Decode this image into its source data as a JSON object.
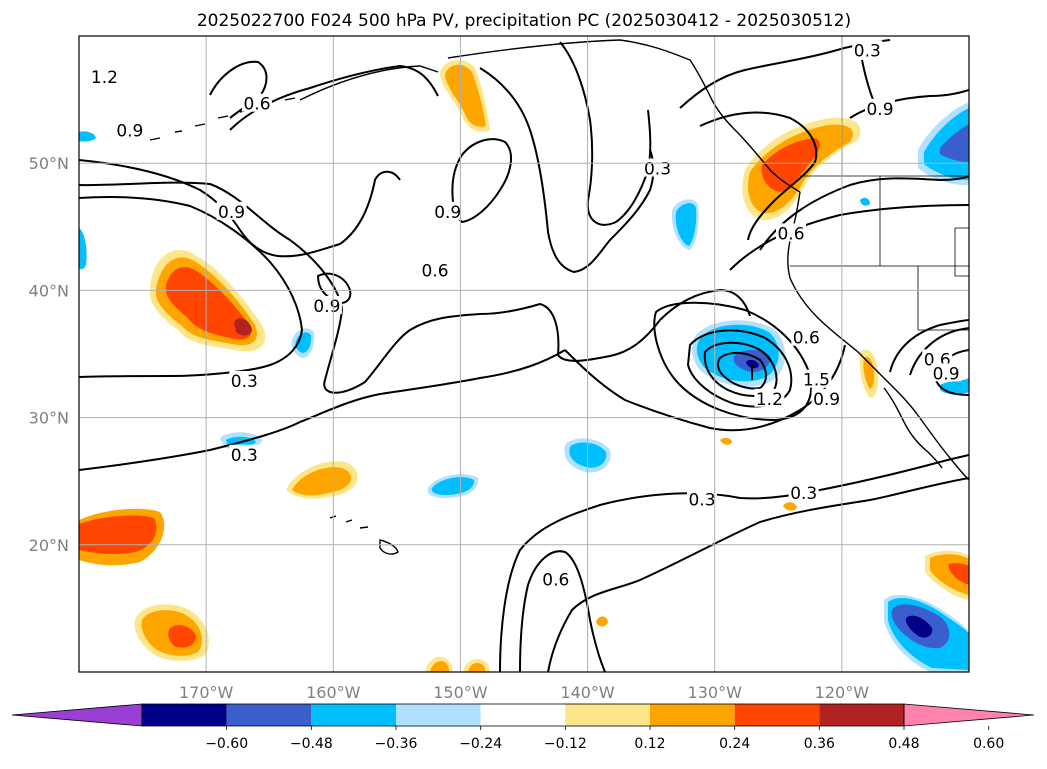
{
  "title": "2025022700 F024 500 hPa PV, precipitation PC (2025030412 - 2025030512)",
  "map": {
    "lon_range": [
      -180,
      -110
    ],
    "lat_range": [
      10,
      60
    ],
    "lon_ticks": [
      {
        "value": -170,
        "label": "170°W"
      },
      {
        "value": -160,
        "label": "160°W"
      },
      {
        "value": -150,
        "label": "150°W"
      },
      {
        "value": -140,
        "label": "140°W"
      },
      {
        "value": -130,
        "label": "130°W"
      },
      {
        "value": -120,
        "label": "120°W"
      }
    ],
    "lat_ticks": [
      {
        "value": 20,
        "label": "20°N"
      },
      {
        "value": 30,
        "label": "30°N"
      },
      {
        "value": 40,
        "label": "40°N"
      },
      {
        "value": 50,
        "label": "50°N"
      }
    ],
    "grid": true
  },
  "contour_labels": [
    {
      "text": "1.2",
      "lon": -178,
      "lat": 56.7
    },
    {
      "text": "0.6",
      "lon": -166,
      "lat": 54.6
    },
    {
      "text": "0.9",
      "lon": -176,
      "lat": 52.5
    },
    {
      "text": "0.9",
      "lon": -168,
      "lat": 46.1
    },
    {
      "text": "0.9",
      "lon": -151,
      "lat": 46.1
    },
    {
      "text": "0.3",
      "lon": -134.5,
      "lat": 49.5
    },
    {
      "text": "0.3",
      "lon": -118,
      "lat": 58.8
    },
    {
      "text": "0.9",
      "lon": -117,
      "lat": 54.2
    },
    {
      "text": "0.6",
      "lon": -124,
      "lat": 44.4
    },
    {
      "text": "0.6",
      "lon": -152,
      "lat": 41.5
    },
    {
      "text": "0.9",
      "lon": -160.5,
      "lat": 38.7
    },
    {
      "text": "0.3",
      "lon": -167,
      "lat": 32.8
    },
    {
      "text": "0.6",
      "lon": -122.8,
      "lat": 36.2
    },
    {
      "text": "1.5",
      "lon": -122,
      "lat": 32.9
    },
    {
      "text": "1.2",
      "lon": -125.7,
      "lat": 31.4
    },
    {
      "text": "0.9",
      "lon": -121.2,
      "lat": 31.4
    },
    {
      "text": "0.6",
      "lon": -112.5,
      "lat": 34.5
    },
    {
      "text": "0.9",
      "lon": -111.8,
      "lat": 33.4
    },
    {
      "text": "0.3",
      "lon": -167,
      "lat": 27.0
    },
    {
      "text": "0.3",
      "lon": -131,
      "lat": 23.5
    },
    {
      "text": "0.3",
      "lon": -123,
      "lat": 24.0
    },
    {
      "text": "0.6",
      "lon": -142.5,
      "lat": 17.2
    }
  ],
  "colorbar": {
    "colors": [
      "#9a3fd4",
      "#00008b",
      "#3a5fcd",
      "#00bfff",
      "#b0e2ff",
      "#ffffff",
      "#fde68a",
      "#ffa500",
      "#ff4500",
      "#b22222",
      "#ff82ab"
    ],
    "tick_labels": [
      "−0.60",
      "−0.48",
      "−0.36",
      "−0.24",
      "−0.12",
      "0.12",
      "0.24",
      "0.36",
      "0.48",
      "0.60"
    ]
  }
}
